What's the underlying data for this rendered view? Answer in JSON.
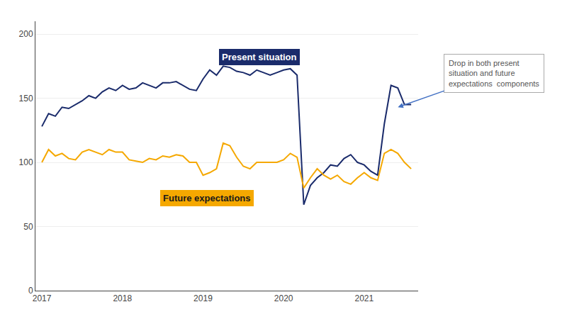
{
  "chart_data": {
    "type": "line",
    "x": [
      2017.0,
      2017.083,
      2017.167,
      2017.25,
      2017.333,
      2017.417,
      2017.5,
      2017.583,
      2017.667,
      2017.75,
      2017.833,
      2017.917,
      2018.0,
      2018.083,
      2018.167,
      2018.25,
      2018.333,
      2018.417,
      2018.5,
      2018.583,
      2018.667,
      2018.75,
      2018.833,
      2018.917,
      2019.0,
      2019.083,
      2019.167,
      2019.25,
      2019.333,
      2019.417,
      2019.5,
      2019.583,
      2019.667,
      2019.75,
      2019.833,
      2019.917,
      2020.0,
      2020.083,
      2020.167,
      2020.25,
      2020.333,
      2020.417,
      2020.5,
      2020.583,
      2020.667,
      2020.75,
      2020.833,
      2020.917,
      2021.0,
      2021.083,
      2021.167,
      2021.25,
      2021.333,
      2021.417,
      2021.5,
      2021.583
    ],
    "series": [
      {
        "name": "Present situation",
        "color": "#1a2b6b",
        "values": [
          128,
          138,
          136,
          143,
          142,
          145,
          148,
          152,
          150,
          155,
          158,
          156,
          160,
          157,
          158,
          162,
          160,
          158,
          162,
          162,
          163,
          160,
          157,
          156,
          165,
          172,
          168,
          175,
          174,
          171,
          170,
          168,
          172,
          170,
          168,
          170,
          172,
          173,
          168,
          67,
          82,
          88,
          92,
          98,
          97,
          103,
          106,
          100,
          98,
          93,
          90,
          130,
          160,
          158,
          145,
          145
        ]
      },
      {
        "name": "Future expectations",
        "color": "#f5a800",
        "values": [
          100,
          110,
          105,
          107,
          103,
          102,
          108,
          110,
          108,
          106,
          110,
          108,
          108,
          102,
          101,
          100,
          103,
          102,
          105,
          104,
          106,
          105,
          100,
          100,
          90,
          92,
          95,
          115,
          113,
          104,
          97,
          95,
          100,
          100,
          100,
          100,
          102,
          107,
          104,
          80,
          88,
          95,
          90,
          87,
          90,
          85,
          83,
          88,
          92,
          88,
          86,
          107,
          110,
          107,
          100,
          95
        ]
      }
    ],
    "xlim": [
      2016.92,
      2021.67
    ],
    "xticks": [
      2017,
      2018,
      2019,
      2020,
      2021
    ],
    "ylim": [
      0,
      210
    ],
    "yticks": [
      0,
      50,
      100,
      150,
      200
    ],
    "grid": "y",
    "annotation": "Drop in both present\nsituation and future\nexpectations  components"
  }
}
